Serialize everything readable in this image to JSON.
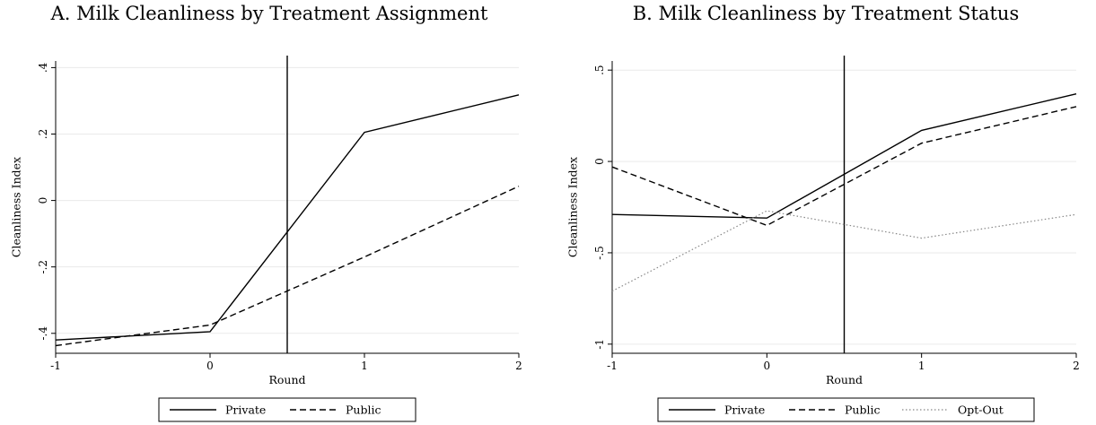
{
  "chart_data": [
    {
      "type": "line",
      "title": "A. Milk Cleanliness by Treatment Assignment",
      "xlabel": "Round",
      "ylabel": "Cleanliness Index",
      "x": [
        -1,
        0,
        1,
        2
      ],
      "xticks": [
        "-1",
        "0",
        "1",
        "2"
      ],
      "xlim": [
        -1,
        2
      ],
      "ylim": [
        -0.46,
        0.42
      ],
      "yticks": [
        -0.4,
        -0.2,
        0,
        0.2,
        0.4
      ],
      "ytick_labels": [
        "-.4",
        "-.2",
        "0",
        ".2",
        ".4"
      ],
      "vline_x": 0.5,
      "grid": "horizontal",
      "legend_position": "bottom",
      "series": [
        {
          "name": "Private",
          "style": "solid",
          "color": "#000000",
          "values": [
            -0.42,
            -0.395,
            0.205,
            0.318
          ]
        },
        {
          "name": "Public",
          "style": "dashed",
          "color": "#000000",
          "values": [
            -0.437,
            -0.375,
            -0.17,
            0.043
          ]
        }
      ]
    },
    {
      "type": "line",
      "title": "B. Milk Cleanliness by Treatment Status",
      "xlabel": "Round",
      "ylabel": "Cleanliness Index",
      "x": [
        -1,
        0,
        1,
        2
      ],
      "xticks": [
        "-1",
        "0",
        "1",
        "2"
      ],
      "xlim": [
        -1,
        2
      ],
      "ylim": [
        -1.05,
        0.55
      ],
      "yticks": [
        -1,
        -0.5,
        0,
        0.5
      ],
      "ytick_labels": [
        "-1",
        "-.5",
        "0",
        ".5"
      ],
      "vline_x": 0.5,
      "grid": "horizontal",
      "legend_position": "bottom",
      "series": [
        {
          "name": "Private",
          "style": "solid",
          "color": "#000000",
          "values": [
            -0.29,
            -0.31,
            0.17,
            0.37
          ]
        },
        {
          "name": "Public",
          "style": "dashed",
          "color": "#000000",
          "values": [
            -0.03,
            -0.35,
            0.1,
            0.3
          ]
        },
        {
          "name": "Opt-Out",
          "style": "dotted",
          "color": "#888888",
          "values": [
            -0.71,
            -0.27,
            -0.42,
            -0.29
          ]
        }
      ]
    }
  ]
}
